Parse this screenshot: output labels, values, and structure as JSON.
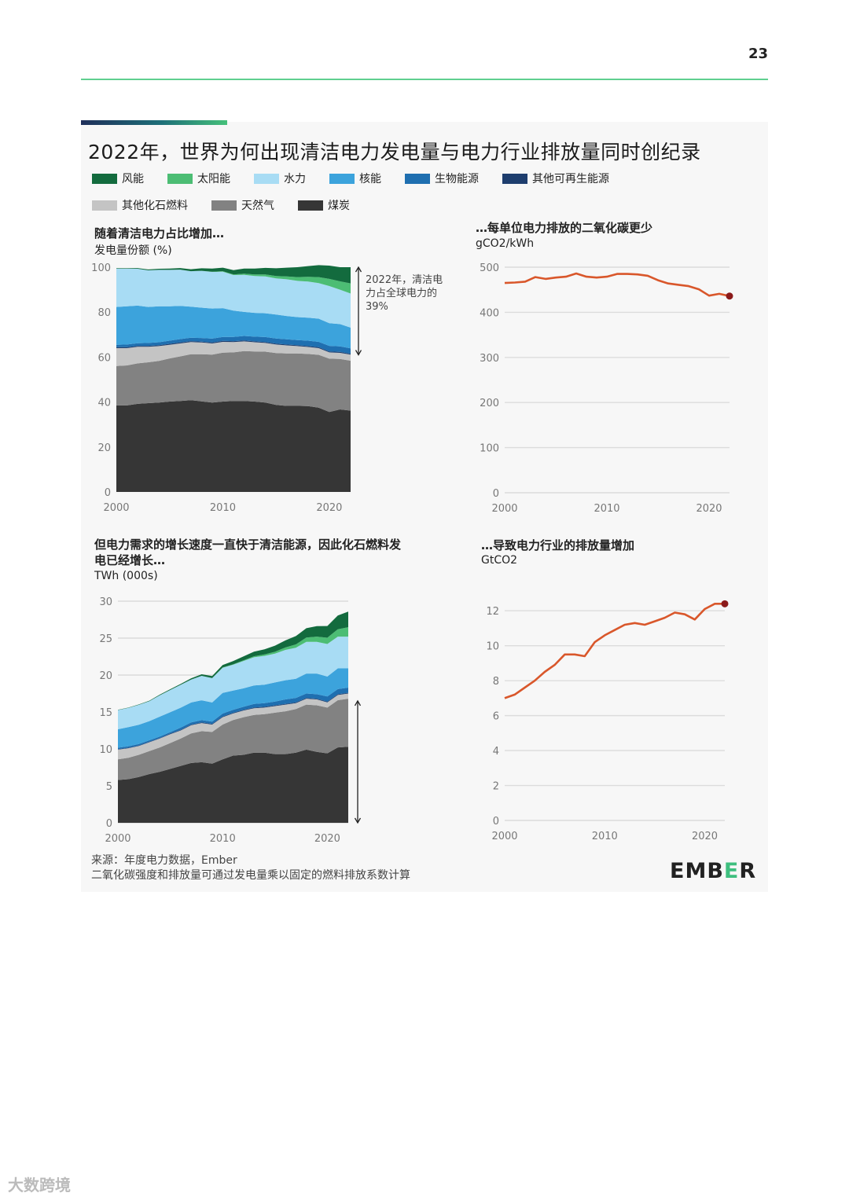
{
  "page": {
    "number": "23",
    "title": "2022年，世界为何出现清洁电力发电量与电力行业排放量同时创纪录",
    "source_line1": "来源：年度电力数据，Ember",
    "source_line2": "二氧化碳强度和排放量可通过发电量乘以固定的燃料排放系数计算",
    "brand": "EMBER",
    "watermark": "大数跨境"
  },
  "legend": [
    {
      "label": "风能",
      "color": "#136b3e"
    },
    {
      "label": "太阳能",
      "color": "#4cbd74"
    },
    {
      "label": "水力",
      "color": "#a8dcf4"
    },
    {
      "label": "核能",
      "color": "#3ca3dc"
    },
    {
      "label": "生物能源",
      "color": "#1f6fb0"
    },
    {
      "label": "其他可再生能源",
      "color": "#1e3e6e"
    },
    {
      "label": "其他化石燃料",
      "color": "#c4c4c4"
    },
    {
      "label": "天然气",
      "color": "#828282"
    },
    {
      "label": "煤炭",
      "color": "#363636"
    }
  ],
  "chart_data": [
    {
      "type": "area",
      "stacked": true,
      "heading": "随着清洁电力占比增加…",
      "ylabel": "发电量份额 (%)",
      "ylim": [
        0,
        100
      ],
      "yticks": [
        0,
        20,
        40,
        60,
        80,
        100
      ],
      "xticks": [
        2000,
        2010,
        2020
      ],
      "x": [
        2000,
        2001,
        2002,
        2003,
        2004,
        2005,
        2006,
        2007,
        2008,
        2009,
        2010,
        2011,
        2012,
        2013,
        2014,
        2015,
        2016,
        2017,
        2018,
        2019,
        2020,
        2021,
        2022
      ],
      "annotation": "2022年，清洁电力占全球电力的39%",
      "annotation_lines": [
        "2022年，清洁电",
        "力占全球电力的",
        "39%"
      ],
      "series": [
        {
          "name": "煤炭",
          "values": [
            38.5,
            38.5,
            39.2,
            39.5,
            39.8,
            40.2,
            40.5,
            40.8,
            40.3,
            39.8,
            40.2,
            40.5,
            40.5,
            40.2,
            39.8,
            38.7,
            38.3,
            38.3,
            38.2,
            37.5,
            35.6,
            36.7,
            36.2
          ]
        },
        {
          "name": "天然气",
          "values": [
            17.5,
            17.8,
            18.0,
            18.2,
            18.5,
            19.2,
            19.8,
            20.5,
            21.0,
            21.3,
            21.8,
            21.6,
            22.2,
            22.3,
            22.6,
            23.1,
            23.3,
            23.3,
            23.2,
            23.5,
            23.7,
            22.5,
            22.2
          ]
        },
        {
          "name": "其他化石燃料",
          "values": [
            8.0,
            7.7,
            7.4,
            6.9,
            6.6,
            6.1,
            5.8,
            5.4,
            5.2,
            5.0,
            4.8,
            4.6,
            4.3,
            4.1,
            3.9,
            3.8,
            3.6,
            3.3,
            3.1,
            3.0,
            2.8,
            2.7,
            2.7
          ]
        },
        {
          "name": "其他可再生能源",
          "values": [
            0.4,
            0.4,
            0.4,
            0.4,
            0.4,
            0.4,
            0.4,
            0.4,
            0.4,
            0.4,
            0.4,
            0.4,
            0.4,
            0.4,
            0.4,
            0.4,
            0.4,
            0.4,
            0.4,
            0.4,
            0.4,
            0.4,
            0.4
          ]
        },
        {
          "name": "生物能源",
          "values": [
            1.1,
            1.2,
            1.2,
            1.3,
            1.3,
            1.4,
            1.5,
            1.5,
            1.6,
            1.7,
            1.8,
            1.9,
            2.0,
            2.1,
            2.2,
            2.3,
            2.3,
            2.3,
            2.4,
            2.4,
            2.5,
            2.5,
            2.4
          ]
        },
        {
          "name": "核能",
          "values": [
            16.8,
            17.0,
            16.7,
            16.0,
            16.0,
            15.3,
            14.8,
            13.8,
            13.5,
            13.4,
            12.8,
            11.7,
            10.7,
            10.6,
            10.6,
            10.6,
            10.4,
            10.2,
            10.2,
            10.3,
            10.1,
            9.9,
            9.2
          ]
        },
        {
          "name": "水力",
          "values": [
            17.1,
            16.7,
            16.4,
            16.3,
            16.2,
            16.2,
            16.1,
            15.8,
            16.4,
            16.3,
            16.2,
            15.8,
            16.5,
            16.4,
            16.4,
            16.1,
            16.3,
            16.1,
            16.1,
            15.8,
            16.5,
            15.3,
            15.2
          ]
        },
        {
          "name": "太阳能",
          "values": [
            0,
            0,
            0,
            0,
            0,
            0,
            0,
            0,
            0,
            0.1,
            0.2,
            0.3,
            0.5,
            0.7,
            0.9,
            1.1,
            1.3,
            1.7,
            2.1,
            2.7,
            3.2,
            3.7,
            4.5
          ]
        },
        {
          "name": "风能",
          "values": [
            0.2,
            0.2,
            0.3,
            0.4,
            0.5,
            0.6,
            0.7,
            0.9,
            1.1,
            1.4,
            1.6,
            1.9,
            2.3,
            2.6,
            2.9,
            3.4,
            3.9,
            4.4,
            4.8,
            5.3,
            5.9,
            6.3,
            7.2
          ]
        }
      ]
    },
    {
      "type": "line",
      "heading": "…每单位电力排放的二氧化碳更少",
      "ylabel": "gCO2/kWh",
      "ylim": [
        0,
        500
      ],
      "yticks": [
        0,
        100,
        200,
        300,
        400,
        500
      ],
      "xticks": [
        2000,
        2010,
        2020
      ],
      "x": [
        2000,
        2001,
        2002,
        2003,
        2004,
        2005,
        2006,
        2007,
        2008,
        2009,
        2010,
        2011,
        2012,
        2013,
        2014,
        2015,
        2016,
        2017,
        2018,
        2019,
        2020,
        2021,
        2022
      ],
      "values": [
        465,
        466,
        468,
        478,
        474,
        477,
        479,
        486,
        479,
        477,
        479,
        485,
        485,
        484,
        481,
        471,
        464,
        461,
        458,
        451,
        437,
        441,
        436
      ],
      "highlight_last": true
    },
    {
      "type": "area",
      "stacked": true,
      "heading": "但电力需求的增长速度一直快于清洁能源，因此化石燃料发电已经增长…",
      "heading_lines": [
        "但电力需求的增长速度一直快于清洁能源，因此化石燃料发",
        "电已经增长…"
      ],
      "ylabel": "TWh (000s)",
      "ylim": [
        0,
        30
      ],
      "yticks": [
        0,
        5,
        10,
        15,
        20,
        25,
        30
      ],
      "xticks": [
        2000,
        2010,
        2020
      ],
      "x": [
        2000,
        2001,
        2002,
        2003,
        2004,
        2005,
        2006,
        2007,
        2008,
        2009,
        2010,
        2011,
        2012,
        2013,
        2014,
        2015,
        2016,
        2017,
        2018,
        2019,
        2020,
        2021,
        2022
      ],
      "series": [
        {
          "name": "煤炭",
          "values": [
            5.8,
            5.9,
            6.2,
            6.6,
            6.9,
            7.3,
            7.7,
            8.1,
            8.2,
            8.0,
            8.6,
            9.1,
            9.2,
            9.5,
            9.5,
            9.3,
            9.3,
            9.5,
            9.9,
            9.6,
            9.4,
            10.2,
            10.3
          ]
        },
        {
          "name": "天然气",
          "values": [
            2.8,
            2.9,
            3.0,
            3.1,
            3.3,
            3.5,
            3.7,
            4.0,
            4.2,
            4.3,
            4.7,
            4.8,
            5.1,
            5.1,
            5.2,
            5.6,
            5.8,
            5.9,
            6.1,
            6.3,
            6.2,
            6.4,
            6.5
          ]
        },
        {
          "name": "其他化石燃料",
          "values": [
            1.3,
            1.3,
            1.2,
            1.2,
            1.2,
            1.2,
            1.1,
            1.1,
            1.1,
            1.0,
            1.0,
            0.9,
            0.9,
            0.9,
            0.9,
            0.9,
            0.9,
            0.8,
            0.8,
            0.8,
            0.7,
            0.7,
            0.7
          ]
        },
        {
          "name": "其他可再生能源",
          "values": [
            0.06,
            0.06,
            0.07,
            0.07,
            0.07,
            0.08,
            0.08,
            0.09,
            0.09,
            0.09,
            0.09,
            0.09,
            0.1,
            0.1,
            0.1,
            0.1,
            0.1,
            0.1,
            0.1,
            0.1,
            0.1,
            0.1,
            0.1
          ]
        },
        {
          "name": "生物能源",
          "values": [
            0.2,
            0.2,
            0.2,
            0.2,
            0.2,
            0.2,
            0.3,
            0.3,
            0.3,
            0.3,
            0.4,
            0.4,
            0.4,
            0.5,
            0.5,
            0.5,
            0.6,
            0.6,
            0.6,
            0.6,
            0.7,
            0.7,
            0.7
          ]
        },
        {
          "name": "核能",
          "values": [
            2.5,
            2.6,
            2.6,
            2.6,
            2.7,
            2.7,
            2.7,
            2.7,
            2.7,
            2.6,
            2.8,
            2.6,
            2.5,
            2.5,
            2.5,
            2.6,
            2.6,
            2.6,
            2.7,
            2.8,
            2.7,
            2.8,
            2.6
          ]
        },
        {
          "name": "水力",
          "values": [
            2.6,
            2.6,
            2.7,
            2.7,
            2.9,
            3.0,
            3.1,
            3.1,
            3.3,
            3.3,
            3.4,
            3.5,
            3.7,
            3.8,
            3.9,
            3.9,
            4.1,
            4.2,
            4.3,
            4.3,
            4.4,
            4.3,
            4.3
          ]
        },
        {
          "name": "太阳能",
          "values": [
            0,
            0,
            0,
            0,
            0,
            0,
            0,
            0,
            0,
            0,
            0.03,
            0.06,
            0.1,
            0.14,
            0.19,
            0.25,
            0.33,
            0.45,
            0.57,
            0.7,
            0.85,
            1.0,
            1.28
          ]
        },
        {
          "name": "风能",
          "values": [
            0.03,
            0.04,
            0.05,
            0.06,
            0.08,
            0.1,
            0.13,
            0.17,
            0.22,
            0.28,
            0.34,
            0.43,
            0.52,
            0.63,
            0.7,
            0.83,
            0.96,
            1.13,
            1.27,
            1.42,
            1.59,
            1.85,
            2.1
          ]
        }
      ]
    },
    {
      "type": "line",
      "heading": "…导致电力行业的排放量增加",
      "ylabel": "GtCO2",
      "ylim": [
        0,
        13
      ],
      "yticks": [
        0,
        2,
        4,
        6,
        8,
        10,
        12
      ],
      "xticks": [
        2000,
        2010,
        2020
      ],
      "x": [
        2000,
        2001,
        2002,
        2003,
        2004,
        2005,
        2006,
        2007,
        2008,
        2009,
        2010,
        2011,
        2012,
        2013,
        2014,
        2015,
        2016,
        2017,
        2018,
        2019,
        2020,
        2021,
        2022
      ],
      "values": [
        7.0,
        7.2,
        7.6,
        8.0,
        8.5,
        8.9,
        9.5,
        9.5,
        9.4,
        10.2,
        10.6,
        10.9,
        11.2,
        11.3,
        11.2,
        11.4,
        11.6,
        11.9,
        11.8,
        11.5,
        12.1,
        12.4,
        12.4
      ],
      "highlight_last": true
    }
  ],
  "colors": {
    "line": "#d9572b",
    "endpoint": "#8b1a1a",
    "grid": "#dcdcdc"
  }
}
